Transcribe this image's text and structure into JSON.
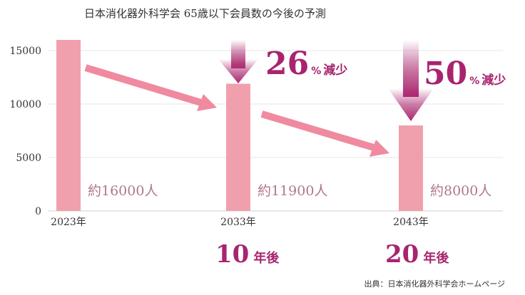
{
  "chart_data": {
    "type": "bar",
    "title": "日本消化器外科学会 65歳以下会員数の今後の予測",
    "categories": [
      "2023年",
      "2033年",
      "2043年"
    ],
    "values": [
      16000,
      11900,
      8000
    ],
    "value_labels": [
      "約16000人",
      "約11900人",
      "約8000人"
    ],
    "yticks": [
      0,
      5000,
      10000,
      15000
    ],
    "ylim": [
      0,
      16000
    ],
    "grid": true,
    "bar_color": "#f0a0ac",
    "annotations": {
      "decrease_1": {
        "value": "26",
        "unit": "%",
        "label": "減少"
      },
      "decrease_2": {
        "value": "50",
        "unit": "%",
        "label": "減少"
      },
      "years_1": {
        "value": "10",
        "label": "年後"
      },
      "years_2": {
        "value": "20",
        "label": "年後"
      }
    },
    "source": "出典：日本消化器外科学会ホームページ"
  },
  "colors": {
    "bar": "#f0a0ac",
    "trend_arrow": "#f08aa0",
    "accent": "#a8246e",
    "value_label": "#b0788a",
    "grid": "#e6e6e6"
  }
}
